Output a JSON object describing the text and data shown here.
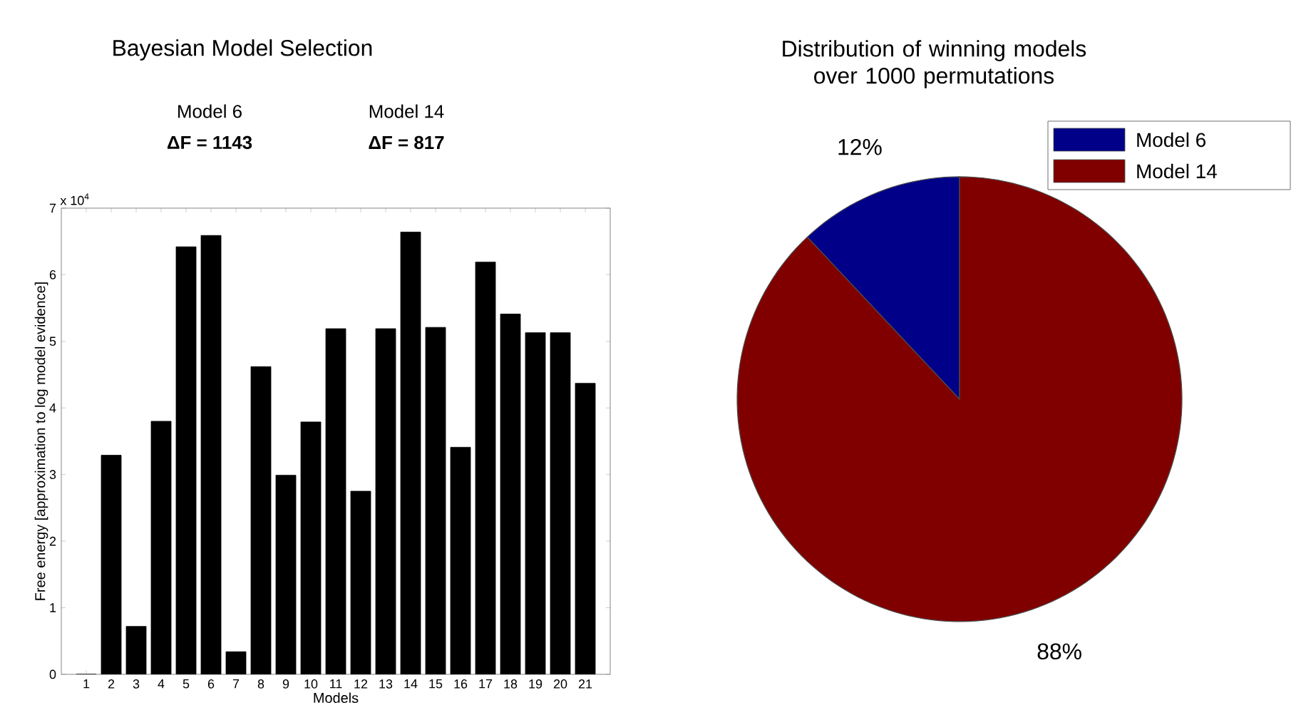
{
  "chart_data": [
    {
      "type": "bar",
      "title": "Bayesian Model Selection",
      "xlabel": "Models",
      "ylabel": "Free energy [approximation to log model evidence]",
      "color": "#000000",
      "categories": [
        "1",
        "2",
        "3",
        "4",
        "5",
        "6",
        "7",
        "8",
        "9",
        "10",
        "11",
        "12",
        "13",
        "14",
        "15",
        "16",
        "17",
        "18",
        "19",
        "20",
        "21"
      ],
      "values": [
        0,
        3.29,
        0.72,
        3.8,
        6.42,
        6.59,
        0.34,
        4.62,
        2.99,
        3.79,
        5.19,
        2.75,
        5.19,
        6.64,
        5.21,
        3.41,
        6.19,
        5.41,
        5.13,
        5.13,
        4.37
      ],
      "ylim": [
        0,
        7
      ],
      "yticks": [
        0,
        1,
        2,
        3,
        4,
        5,
        6,
        7
      ],
      "annotations": [
        "Model 6",
        "ΔF = 1143",
        "Model 14",
        "ΔF = 817",
        "x 10$^{4}$"
      ]
    },
    {
      "type": "pie",
      "title": "Distribution of winning models over 1000 permutations",
      "categories": [
        "Model 6",
        "Model 14"
      ],
      "values": [
        12,
        88
      ],
      "colors": [
        "#000088",
        "#800000"
      ],
      "value_labels": [
        "12%",
        "88%"
      ],
      "legend": "top right"
    }
  ]
}
